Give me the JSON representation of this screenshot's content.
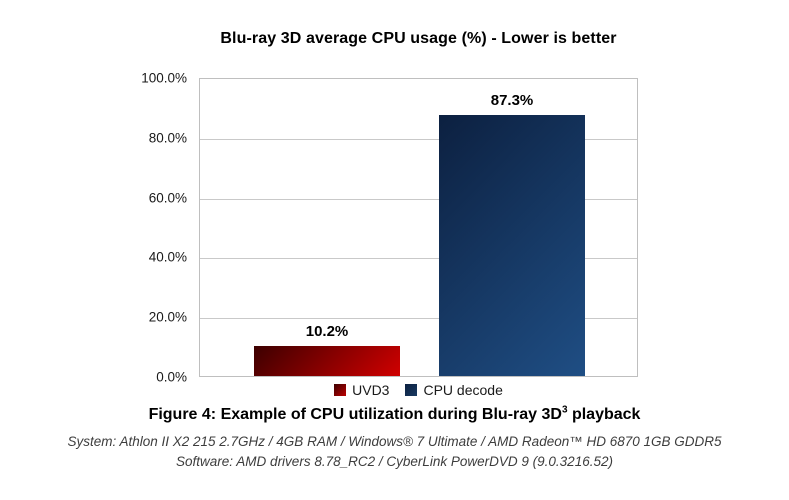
{
  "chart_data": {
    "type": "bar",
    "title": "Blu-ray 3D average CPU usage (%) - Lower is better",
    "categories": [
      "UVD3",
      "CPU decode"
    ],
    "values": [
      10.2,
      87.3
    ],
    "value_labels": [
      "10.2%",
      "87.3%"
    ],
    "xlabel": "",
    "ylabel": "",
    "ylim": [
      0,
      100
    ],
    "yticks": [
      "0.0%",
      "20.0%",
      "40.0%",
      "60.0%",
      "80.0%",
      "100.0%"
    ],
    "grid": true,
    "legend_position": "bottom",
    "series_colors": [
      {
        "name": "UVD3",
        "gradient_from": "#3c0000",
        "gradient_to": "#d00000",
        "legend": "#b00000"
      },
      {
        "name": "CPU decode",
        "gradient_from": "#0c2040",
        "gradient_to": "#1f4e84",
        "legend": "#17375e"
      }
    ],
    "gridline_color": "#c9c9c9",
    "plot_border_color": "#bfbfbf"
  },
  "caption": {
    "figure_text": "Figure 4: Example of CPU utilization during Blu-ray 3D",
    "figure_superscript": "3",
    "figure_text_end": " playback",
    "system_line": "System: Athlon II X2 215 2.7GHz / 4GB RAM / Windows® 7 Ultimate / AMD Radeon™ HD 6870 1GB GDDR5",
    "software_line": "Software: AMD drivers 8.78_RC2 / CyberLink PowerDVD 9 (9.0.3216.52)"
  }
}
